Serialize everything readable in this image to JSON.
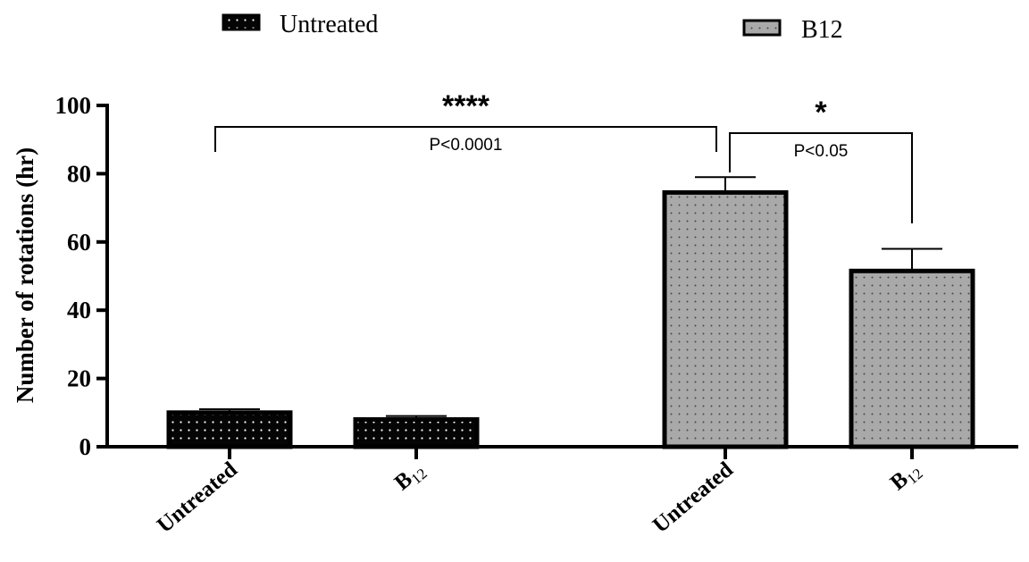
{
  "chart_data": {
    "type": "bar",
    "ylabel": "Number of rotations (hr)",
    "ylim": [
      0,
      100
    ],
    "yticks": [
      "0",
      "20",
      "40",
      "60",
      "80",
      "100"
    ],
    "legend": [
      {
        "label": "Untreated",
        "pattern": "black-dotted"
      },
      {
        "label": "B12",
        "pattern": "gray-dotted"
      }
    ],
    "bars": [
      {
        "label": "Untreated",
        "sub": "",
        "value": 10,
        "error": 1,
        "fill": "#050505",
        "dot": "#ffffff"
      },
      {
        "label": "B",
        "sub": "12",
        "value": 8,
        "error": 1,
        "fill": "#050505",
        "dot": "#ffffff"
      },
      {
        "label": "Untreated",
        "sub": "",
        "value": 74.5,
        "error": 4.5,
        "fill": "#a9a9a9",
        "dot": "#555555"
      },
      {
        "label": "B",
        "sub": "12",
        "value": 51.5,
        "error": 6.5,
        "fill": "#a9a9a9",
        "dot": "#555555"
      }
    ],
    "comparisons": [
      {
        "from": 0,
        "to": 2,
        "stars": "****",
        "p": "P<0.0001"
      },
      {
        "from": 2,
        "to": 3,
        "stars": "*",
        "p": "P<0.05"
      }
    ]
  }
}
